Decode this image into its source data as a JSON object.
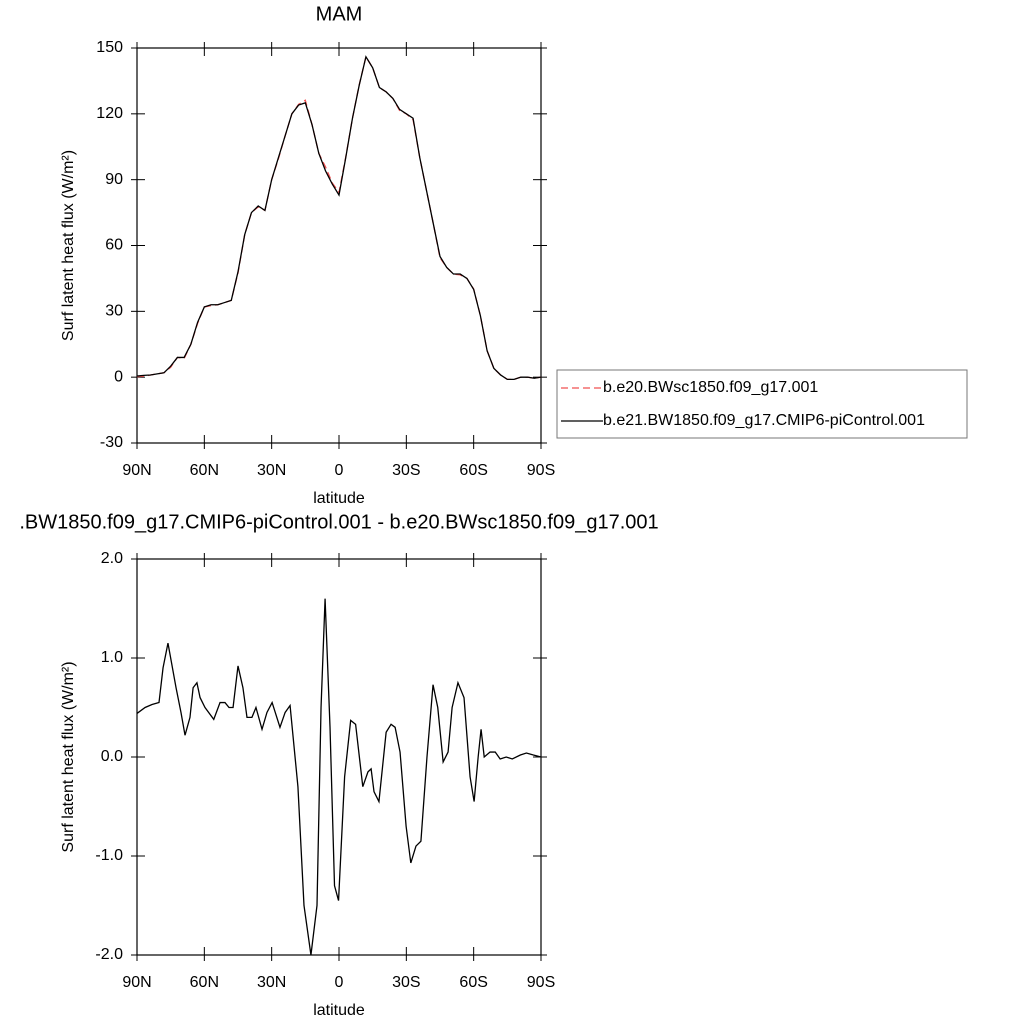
{
  "chart_data": [
    {
      "type": "line",
      "title": "MAM",
      "xlabel": "latitude",
      "ylabel": "Surf latent heat flux (W/m²)",
      "x": [
        90,
        87,
        84,
        81,
        78,
        75,
        72,
        69,
        66,
        63,
        60,
        57,
        54,
        51,
        48,
        45,
        42,
        39,
        36,
        33,
        30,
        27,
        24,
        21,
        18,
        15,
        12,
        9,
        6,
        3,
        0,
        -3,
        -6,
        -9,
        -12,
        -15,
        -18,
        -21,
        -24,
        -27,
        -30,
        -33,
        -36,
        -39,
        -42,
        -45,
        -48,
        -51,
        -54,
        -57,
        -60,
        -63,
        -66,
        -69,
        -72,
        -75,
        -78,
        -81,
        -84,
        -87,
        -90
      ],
      "series": [
        {
          "name": "b.e20.BWsc1850.f09_g17.001",
          "color": "#f05050",
          "line_style": "dashed",
          "values": [
            0.2,
            0.4,
            1,
            1.5,
            2,
            4.5,
            9,
            8.5,
            15,
            24.5,
            32,
            32.6,
            33,
            34,
            35,
            47.5,
            65,
            75,
            77.6,
            76,
            90,
            99.5,
            110,
            120,
            124.3,
            126.2,
            115,
            102,
            95.8,
            88.5,
            84.2,
            100.3,
            118,
            133.2,
            146,
            141,
            132,
            130,
            127,
            121.5,
            120,
            117.3,
            100,
            85,
            70,
            54.4,
            50,
            47,
            46.6,
            45,
            40.2,
            28,
            12.1,
            4,
            1,
            -1,
            -1,
            0,
            0,
            -0.5,
            0
          ]
        },
        {
          "name": "b.e21.BW1850.f09_g17.CMIP6-piControl.001",
          "color": "#000000",
          "line_style": "solid",
          "values": [
            0.5,
            0.8,
            1,
            1.5,
            2,
            5,
            9,
            9,
            15,
            25,
            32,
            33,
            33,
            34,
            35,
            48,
            65,
            75,
            78,
            76,
            90,
            100,
            110,
            120,
            124,
            125,
            115,
            102,
            94,
            88,
            83,
            100,
            118,
            133,
            146,
            141,
            132,
            130,
            127,
            122,
            120,
            118,
            100,
            85,
            70,
            55,
            50,
            47,
            47,
            45,
            40,
            28,
            12,
            4,
            1,
            -1,
            -1,
            0,
            0,
            -0.5,
            0
          ]
        }
      ],
      "xlim": [
        90,
        -90
      ],
      "xticks": [
        {
          "value": 90,
          "label": "90N"
        },
        {
          "value": 60,
          "label": "60N"
        },
        {
          "value": 30,
          "label": "30N"
        },
        0,
        {
          "value": -30,
          "label": "30S"
        },
        {
          "value": -60,
          "label": "60S"
        },
        {
          "value": -90,
          "label": "90S"
        }
      ],
      "ylim": [
        -30,
        150
      ],
      "yticks": [
        -30,
        0,
        30,
        60,
        90,
        120,
        150
      ],
      "legend": "right"
    },
    {
      "type": "line",
      "title": ".BW1850.f09_g17.CMIP6-piControl.001 - b.e20.BWsc1850.f09_g17.001",
      "xlabel": "latitude",
      "ylabel": "Surf latent heat flux (W/m²)",
      "x": [
        90,
        86.4,
        83.3,
        80.2,
        78.4,
        76.2,
        72.6,
        70.4,
        68.6,
        66.4,
        65,
        63.3,
        61.9,
        59.7,
        55.8,
        53,
        50.8,
        49,
        47.2,
        45,
        42.8,
        41,
        38.8,
        37,
        34.3,
        32.1,
        29.8,
        26.3,
        24,
        21.8,
        18.3,
        15.6,
        12.5,
        9.8,
        8,
        6.2,
        4,
        2,
        0.2,
        -2.5,
        -5.2,
        -7.4,
        -10.6,
        -12.9,
        -14.3,
        -15.6,
        -17.8,
        -21,
        -23.2,
        -25,
        -27.2,
        -29.9,
        -32,
        -34.3,
        -36.5,
        -39.2,
        -41.9,
        -44,
        -46.4,
        -48.6,
        -50.4,
        -53,
        -55.7,
        -58.4,
        -60.2,
        -62,
        -63.3,
        -64.7,
        -67.3,
        -69.6,
        -71.8,
        -74.5,
        -77.2,
        -80.8,
        -83.5,
        -86.6,
        -90
      ],
      "values": [
        0.44,
        0.5,
        0.53,
        0.55,
        0.9,
        1.15,
        0.7,
        0.45,
        0.22,
        0.4,
        0.7,
        0.75,
        0.6,
        0.5,
        0.38,
        0.55,
        0.55,
        0.5,
        0.5,
        0.92,
        0.7,
        0.4,
        0.4,
        0.5,
        0.28,
        0.45,
        0.55,
        0.3,
        0.45,
        0.52,
        -0.3,
        -1.5,
        -2.0,
        -1.5,
        0.5,
        1.6,
        0.3,
        -1.3,
        -1.45,
        -0.2,
        0.37,
        0.33,
        -0.3,
        -0.15,
        -0.12,
        -0.35,
        -0.45,
        0.25,
        0.33,
        0.3,
        0.05,
        -0.7,
        -1.07,
        -0.9,
        -0.85,
        0,
        0.73,
        0.5,
        -0.05,
        0.05,
        0.5,
        0.75,
        0.6,
        -0.2,
        -0.45,
        0,
        0.28,
        0,
        0.05,
        0.05,
        -0.02,
        0,
        -0.02,
        0.02,
        0.04,
        0.02,
        0
      ],
      "color": "#000000",
      "xlim": [
        90,
        -90
      ],
      "xticks": [
        {
          "value": 90,
          "label": "90N"
        },
        {
          "value": 60,
          "label": "60N"
        },
        {
          "value": 30,
          "label": "30N"
        },
        0,
        {
          "value": -30,
          "label": "30S"
        },
        {
          "value": -60,
          "label": "60S"
        },
        {
          "value": -90,
          "label": "90S"
        }
      ],
      "ylim": [
        -2,
        2
      ],
      "yticks": [
        {
          "value": -2,
          "label": "-2.0"
        },
        {
          "value": -1,
          "label": "-1.0"
        },
        {
          "value": 0,
          "label": "0.0"
        },
        {
          "value": 1,
          "label": "1.0"
        },
        {
          "value": 2,
          "label": "2.0"
        }
      ]
    }
  ]
}
